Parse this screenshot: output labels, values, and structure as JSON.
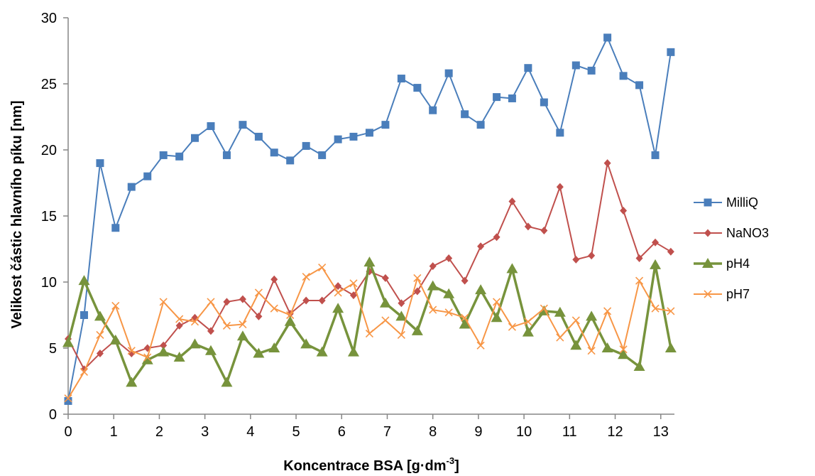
{
  "chart_data": {
    "type": "line",
    "xlabel_main": "Koncentrace BSA [g·dm",
    "xlabel_sup": "-3",
    "xlabel_end": "]",
    "ylabel": "Velikost částic hlavního píku [nm]",
    "xlim": [
      0,
      13.3
    ],
    "ylim": [
      0,
      30
    ],
    "xticks": [
      0,
      1,
      2,
      3,
      4,
      5,
      6,
      7,
      8,
      9,
      10,
      11,
      12,
      13
    ],
    "yticks": [
      0,
      5,
      10,
      15,
      20,
      25,
      30
    ],
    "grid": false,
    "legend_position": "right",
    "x": [
      0,
      0.35,
      0.7,
      1.04,
      1.39,
      1.74,
      2.09,
      2.44,
      2.78,
      3.13,
      3.48,
      3.83,
      4.18,
      4.52,
      4.87,
      5.22,
      5.57,
      5.92,
      6.26,
      6.61,
      6.96,
      7.31,
      7.66,
      8.0,
      8.35,
      8.7,
      9.05,
      9.4,
      9.74,
      10.09,
      10.44,
      10.79,
      11.14,
      11.48,
      11.83,
      12.18,
      12.53,
      12.88,
      13.22
    ],
    "series": [
      {
        "name": "MilliQ",
        "color": "#4a7ebb",
        "marker": "square",
        "values": [
          1.0,
          7.5,
          19.0,
          14.1,
          17.2,
          18.0,
          19.6,
          19.5,
          20.9,
          21.8,
          19.6,
          21.9,
          21.0,
          19.8,
          19.2,
          20.3,
          19.6,
          20.8,
          21.0,
          21.3,
          21.9,
          25.4,
          24.7,
          23.0,
          25.8,
          22.7,
          21.9,
          24.0,
          23.9,
          26.2,
          23.6,
          21.3,
          26.4,
          26.0,
          28.5,
          25.6,
          24.9,
          19.6,
          27.4
        ]
      },
      {
        "name": "NaNO3",
        "color": "#c0504d",
        "marker": "diamond",
        "values": [
          5.7,
          3.4,
          4.6,
          5.6,
          4.6,
          5.0,
          5.2,
          6.7,
          7.3,
          6.3,
          8.5,
          8.7,
          7.4,
          10.2,
          7.6,
          8.6,
          8.6,
          9.7,
          9.0,
          10.8,
          10.3,
          8.4,
          9.3,
          11.2,
          11.8,
          10.1,
          12.7,
          13.4,
          16.1,
          14.2,
          13.9,
          17.2,
          11.7,
          12.0,
          19.0,
          15.4,
          11.8,
          13.0,
          12.3
        ]
      },
      {
        "name": "pH4",
        "color": "#77933c",
        "marker": "triangle",
        "values": [
          5.4,
          10.1,
          7.4,
          5.6,
          2.4,
          4.1,
          4.7,
          4.3,
          5.3,
          4.8,
          2.4,
          5.9,
          4.6,
          5.0,
          7.0,
          5.3,
          4.7,
          8.0,
          4.7,
          11.5,
          8.4,
          7.4,
          6.3,
          9.7,
          9.1,
          6.8,
          9.4,
          7.3,
          11.0,
          6.2,
          7.8,
          7.7,
          5.2,
          7.4,
          5.0,
          4.5,
          3.6,
          11.3,
          5.0
        ]
      },
      {
        "name": "pH7",
        "color": "#f79646",
        "marker": "x",
        "values": [
          1.2,
          3.2,
          6.0,
          8.2,
          4.8,
          4.3,
          8.5,
          7.2,
          7.0,
          8.5,
          6.7,
          6.8,
          9.2,
          8.0,
          7.5,
          10.4,
          11.1,
          9.2,
          9.9,
          6.1,
          7.1,
          6.0,
          10.3,
          7.9,
          7.7,
          7.3,
          5.2,
          8.5,
          6.6,
          7.0,
          8.0,
          5.8,
          7.1,
          4.8,
          7.8,
          4.9,
          10.1,
          8.0,
          7.8
        ]
      }
    ]
  }
}
